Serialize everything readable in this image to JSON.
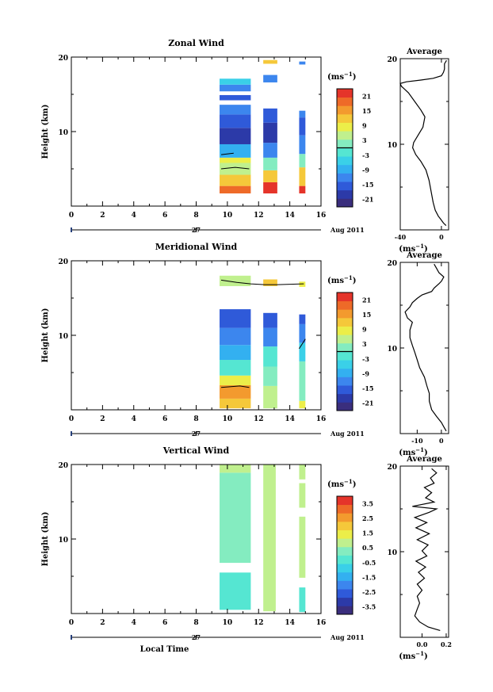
{
  "chart_data": [
    {
      "type": "heatmap",
      "title": "Zonal Wind",
      "ylabel": "Height (km)",
      "xlabel": "",
      "xlim": [
        0,
        16
      ],
      "ylim": [
        0,
        20
      ],
      "x_ticks": [
        "0",
        "2",
        "4",
        "6",
        "8",
        "10",
        "12",
        "14",
        "16"
      ],
      "y_ticks": [
        "10",
        "20"
      ],
      "date_day": "27",
      "date_month": "Aug 2011",
      "unit_label": "(ms",
      "unit_sup": "−1",
      "unit_close": ")",
      "colorbar_ticks": [
        "21",
        "15",
        "9",
        "3",
        "-3",
        "-9",
        "-15",
        "-21"
      ],
      "colorbar_range": [
        -24,
        24
      ],
      "data_columns": [
        {
          "x": [
            9.5,
            11.5
          ],
          "segments": [
            [
              1.7,
              2.7,
              12
            ],
            [
              2.7,
              4.2,
              10
            ],
            [
              4.2,
              5.8,
              8
            ],
            [
              5.8,
              6.5,
              9
            ],
            [
              6.5,
              8.3,
              4
            ],
            [
              8.3,
              10.5,
              1
            ],
            [
              10.5,
              12.3,
              2
            ],
            [
              12.3,
              13.6,
              3
            ],
            [
              14.2,
              14.9,
              2
            ],
            [
              15.4,
              16.3,
              3
            ],
            [
              16.3,
              17.1,
              5
            ]
          ]
        },
        {
          "x": [
            12.3,
            13.2
          ],
          "segments": [
            [
              1.7,
              3.2,
              13
            ],
            [
              3.2,
              4.8,
              10
            ],
            [
              4.8,
              6.5,
              7
            ],
            [
              6.5,
              8.5,
              3
            ],
            [
              8.5,
              11.2,
              1
            ],
            [
              11.2,
              13.1,
              2
            ],
            [
              16.6,
              17.6,
              3
            ],
            [
              19.1,
              19.6,
              10
            ]
          ]
        },
        {
          "x": [
            14.6,
            15.0
          ],
          "segments": [
            [
              1.7,
              2.7,
              13
            ],
            [
              2.7,
              5.2,
              10
            ],
            [
              5.2,
              7.0,
              7
            ],
            [
              7.0,
              9.5,
              3
            ],
            [
              9.5,
              11.9,
              2
            ],
            [
              11.9,
              12.8,
              3
            ],
            [
              19.0,
              19.4,
              3
            ]
          ]
        }
      ],
      "contours": [
        {
          "x": [
            9.6,
            10.5,
            11.4
          ],
          "y": [
            5.0,
            5.2,
            5.0
          ]
        },
        {
          "x": [
            9.6,
            10.4
          ],
          "y": [
            6.9,
            7.1
          ]
        }
      ]
    },
    {
      "type": "heatmap",
      "title": "Meridional Wind",
      "ylabel": "Height (km)",
      "xlabel": "",
      "xlim": [
        0,
        16
      ],
      "ylim": [
        0,
        20
      ],
      "x_ticks": [
        "0",
        "2",
        "4",
        "6",
        "8",
        "10",
        "12",
        "14",
        "16"
      ],
      "y_ticks": [
        "10",
        "20"
      ],
      "date_day": "27",
      "date_month": "Aug 2011",
      "unit_label": "(ms",
      "unit_sup": "−1",
      "unit_close": ")",
      "colorbar_ticks": [
        "21",
        "15",
        "9",
        "3",
        "-3",
        "-9",
        "-15",
        "-21"
      ],
      "colorbar_range": [
        -24,
        24
      ],
      "data_columns": [
        {
          "x": [
            9.5,
            11.5
          ],
          "segments": [
            [
              0.2,
              1.5,
              10
            ],
            [
              1.5,
              3.3,
              11
            ],
            [
              3.3,
              4.6,
              9
            ],
            [
              4.6,
              6.7,
              6
            ],
            [
              6.7,
              8.7,
              4
            ],
            [
              8.7,
              11.0,
              3
            ],
            [
              11.0,
              13.5,
              2
            ],
            [
              16.6,
              18.0,
              8
            ]
          ]
        },
        {
          "x": [
            12.3,
            13.2
          ],
          "segments": [
            [
              0.2,
              3.2,
              8
            ],
            [
              3.2,
              5.8,
              7
            ],
            [
              5.8,
              8.5,
              6
            ],
            [
              8.5,
              11.0,
              3
            ],
            [
              11.0,
              13.0,
              2
            ],
            [
              16.6,
              17.5,
              10
            ]
          ]
        },
        {
          "x": [
            14.6,
            15.0
          ],
          "segments": [
            [
              0.2,
              1.2,
              9
            ],
            [
              1.2,
              6.5,
              7
            ],
            [
              6.5,
              9.0,
              5
            ],
            [
              9.0,
              11.5,
              3
            ],
            [
              11.5,
              12.8,
              2
            ],
            [
              16.5,
              17.2,
              9
            ]
          ]
        }
      ],
      "contours": [
        {
          "x": [
            9.6,
            10.6,
            11.5,
            12.4,
            13.2,
            14.9
          ],
          "y": [
            17.4,
            17.1,
            16.9,
            16.8,
            16.8,
            16.9
          ]
        },
        {
          "x": [
            9.6,
            10.8,
            11.4
          ],
          "y": [
            3.0,
            3.2,
            3.0
          ]
        },
        {
          "x": [
            14.6,
            15.0
          ],
          "y": [
            8.2,
            9.5
          ]
        }
      ]
    },
    {
      "type": "heatmap",
      "title": "Vertical Wind",
      "ylabel": "Height (km)",
      "xlabel": "Local Time",
      "xlim": [
        0,
        16
      ],
      "ylim": [
        0,
        20
      ],
      "x_ticks": [
        "0",
        "2",
        "4",
        "6",
        "8",
        "10",
        "12",
        "14",
        "16"
      ],
      "y_ticks": [
        "10",
        "20"
      ],
      "date_day": "27",
      "date_month": "Aug 2011",
      "unit_label": "(ms",
      "unit_sup": "−1",
      "unit_close": ")",
      "colorbar_ticks": [
        "3.5",
        "2.5",
        "1.5",
        "0.5",
        "-0.5",
        "-1.5",
        "-2.5",
        "-3.5"
      ],
      "colorbar_range": [
        -4,
        4
      ],
      "data_columns": [
        {
          "x": [
            9.5,
            11.5
          ],
          "segments": [
            [
              0.5,
              5.5,
              6
            ],
            [
              6.8,
              18.9,
              7
            ],
            [
              18.9,
              20.0,
              8
            ]
          ]
        },
        {
          "x": [
            12.3,
            13.1
          ],
          "segments": [
            [
              0.3,
              20.0,
              8
            ]
          ]
        },
        {
          "x": [
            14.6,
            15.0
          ],
          "segments": [
            [
              0.2,
              3.5,
              6
            ],
            [
              4.8,
              13.0,
              8
            ],
            [
              14.2,
              17.5,
              8
            ],
            [
              18.0,
              20.0,
              8
            ]
          ]
        }
      ],
      "contours": []
    }
  ],
  "average_profiles": [
    {
      "title": "Average",
      "xlim": [
        -40,
        7
      ],
      "ylim": [
        0,
        20
      ],
      "x_ticks": [
        -40,
        0
      ],
      "x_tick_labels": [
        "-40",
        "0"
      ],
      "y_ticks": [
        "10",
        "20"
      ],
      "unit_label": "(ms",
      "unit_sup": "−1",
      "unit_close": ")",
      "profile": [
        [
          4.5,
          0.5
        ],
        [
          2,
          0.8
        ],
        [
          -1,
          1.3
        ],
        [
          -3,
          1.6
        ],
        [
          -6,
          2.3
        ],
        [
          -8,
          3.2
        ],
        [
          -10,
          4.5
        ],
        [
          -12,
          5.8
        ],
        [
          -15,
          7.0
        ],
        [
          -20,
          8.0
        ],
        [
          -25,
          8.8
        ],
        [
          -28,
          9.6
        ],
        [
          -27,
          10.2
        ],
        [
          -23,
          11.0
        ],
        [
          -18,
          12.0
        ],
        [
          -16,
          13.2
        ],
        [
          -20,
          14.0
        ],
        [
          -26,
          15.0
        ],
        [
          -32,
          16.0
        ],
        [
          -39,
          16.8
        ],
        [
          -40,
          17.1
        ],
        [
          -34,
          17.3
        ],
        [
          -20,
          17.5
        ],
        [
          -8,
          17.7
        ],
        [
          0,
          18.0
        ],
        [
          2,
          18.4
        ],
        [
          3,
          18.8
        ],
        [
          3,
          19.4
        ],
        [
          5,
          19.8
        ]
      ]
    },
    {
      "title": "Average",
      "xlim": [
        -17,
        3
      ],
      "ylim": [
        0,
        20
      ],
      "x_ticks": [
        -10,
        0
      ],
      "x_tick_labels": [
        "-10",
        "0"
      ],
      "y_ticks": [
        "10",
        "20"
      ],
      "unit_label": "(ms",
      "unit_sup": "−1",
      "unit_close": ")",
      "profile": [
        [
          2,
          0.3
        ],
        [
          1,
          0.8
        ],
        [
          0,
          1.3
        ],
        [
          -2,
          2.0
        ],
        [
          -4,
          2.8
        ],
        [
          -5,
          3.8
        ],
        [
          -5,
          4.7
        ],
        [
          -6,
          5.6
        ],
        [
          -7,
          6.6
        ],
        [
          -9,
          7.7
        ],
        [
          -10,
          8.6
        ],
        [
          -11,
          9.5
        ],
        [
          -12,
          10.3
        ],
        [
          -13,
          11.2
        ],
        [
          -13,
          12.1
        ],
        [
          -12,
          13.0
        ],
        [
          -14,
          13.5
        ],
        [
          -15,
          14.2
        ],
        [
          -13,
          14.8
        ],
        [
          -12,
          15.3
        ],
        [
          -10,
          15.8
        ],
        [
          -8,
          16.2
        ],
        [
          -4,
          16.6
        ],
        [
          -3,
          17.0
        ],
        [
          -1,
          17.5
        ],
        [
          0,
          17.8
        ],
        [
          1,
          18.3
        ],
        [
          -1,
          18.8
        ],
        [
          -2,
          19.3
        ],
        [
          -3,
          19.8
        ]
      ]
    },
    {
      "title": "Average",
      "xlim": [
        -0.18,
        0.22
      ],
      "ylim": [
        0,
        20
      ],
      "x_ticks": [
        0.0,
        0.2
      ],
      "x_tick_labels": [
        "0.0",
        "0.2"
      ],
      "y_ticks": [
        "10",
        "20"
      ],
      "unit_label": "(ms",
      "unit_sup": "−1",
      "unit_close": ")",
      "profile": [
        [
          0.15,
          0.8
        ],
        [
          0.05,
          1.2
        ],
        [
          -0.02,
          1.8
        ],
        [
          -0.06,
          2.5
        ],
        [
          -0.04,
          3.3
        ],
        [
          -0.02,
          4.0
        ],
        [
          -0.04,
          4.8
        ],
        [
          0.0,
          5.5
        ],
        [
          -0.04,
          6.2
        ],
        [
          0.02,
          6.9
        ],
        [
          -0.03,
          7.6
        ],
        [
          0.03,
          8.2
        ],
        [
          -0.05,
          8.9
        ],
        [
          0.04,
          9.5
        ],
        [
          0.0,
          10.1
        ],
        [
          0.05,
          10.8
        ],
        [
          -0.04,
          11.4
        ],
        [
          0.06,
          12.1
        ],
        [
          -0.05,
          12.8
        ],
        [
          0.04,
          13.4
        ],
        [
          -0.06,
          14.0
        ],
        [
          0.06,
          14.6
        ],
        [
          0.12,
          15.0
        ],
        [
          -0.08,
          15.3
        ],
        [
          0.1,
          15.8
        ],
        [
          0.03,
          16.3
        ],
        [
          0.08,
          16.9
        ],
        [
          0.02,
          17.5
        ],
        [
          0.1,
          18.0
        ],
        [
          0.07,
          18.6
        ],
        [
          0.12,
          19.2
        ],
        [
          0.08,
          19.7
        ]
      ]
    }
  ],
  "colormap": [
    "#3a2e7d",
    "#2c3aa8",
    "#2f5ad9",
    "#3c86ee",
    "#33b0f0",
    "#3ad0e8",
    "#55e6d2",
    "#84ecc0",
    "#c0f08e",
    "#ecee49",
    "#f5c83a",
    "#f39a2e",
    "#ee6a28",
    "#e5342a"
  ]
}
